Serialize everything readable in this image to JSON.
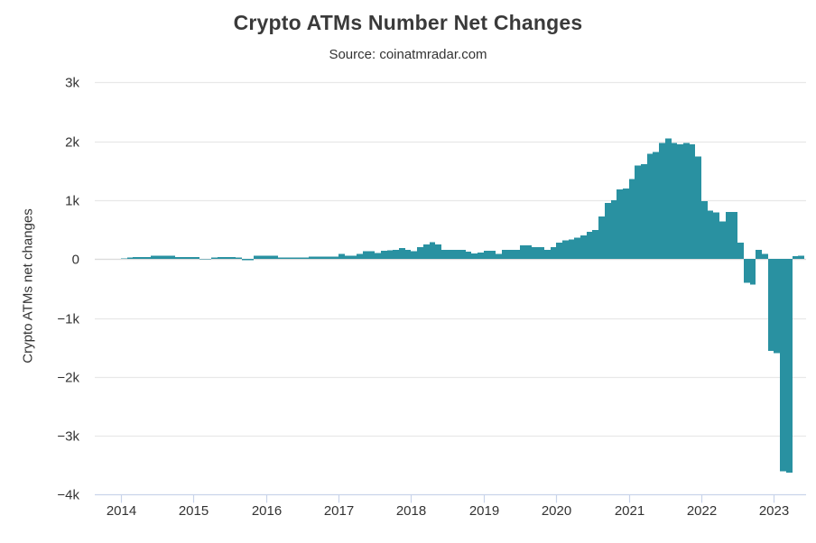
{
  "page": {
    "title": "Crypto ATMs Number Net Changes",
    "subtitle": "Source: coinatmradar.com"
  },
  "chart_data": {
    "type": "bar",
    "title": "Crypto ATMs Number Net Changes",
    "subtitle": "Source: coinatmradar.com",
    "xlabel": "",
    "ylabel": "Crypto ATMs net changes",
    "ylim": [
      -4000,
      3000
    ],
    "grid": true,
    "legend": "none",
    "bar_color": "#2991a1",
    "grid_color": "#e8e8e8",
    "axis_color": "#c9d4ea",
    "zero_line_color": "#dcdcdc",
    "text_color": "#333333",
    "ytick_values": [
      3000,
      2000,
      1000,
      0,
      -1000,
      -2000,
      -3000,
      -4000
    ],
    "ytick_labels": [
      "3k",
      "2k",
      "1k",
      "0",
      "−1k",
      "−2k",
      "−3k",
      "−4k"
    ],
    "xtick_labels": [
      "2014",
      "2015",
      "2016",
      "2017",
      "2018",
      "2019",
      "2020",
      "2021",
      "2022",
      "2023"
    ],
    "months": [
      "2014-01",
      "2014-02",
      "2014-03",
      "2014-04",
      "2014-05",
      "2014-06",
      "2014-07",
      "2014-08",
      "2014-09",
      "2014-10",
      "2014-11",
      "2014-12",
      "2015-01",
      "2015-02",
      "2015-03",
      "2015-04",
      "2015-05",
      "2015-06",
      "2015-07",
      "2015-08",
      "2015-09",
      "2015-10",
      "2015-11",
      "2015-12",
      "2016-01",
      "2016-02",
      "2016-03",
      "2016-04",
      "2016-05",
      "2016-06",
      "2016-07",
      "2016-08",
      "2016-09",
      "2016-10",
      "2016-11",
      "2016-12",
      "2017-01",
      "2017-02",
      "2017-03",
      "2017-04",
      "2017-05",
      "2017-06",
      "2017-07",
      "2017-08",
      "2017-09",
      "2017-10",
      "2017-11",
      "2017-12",
      "2018-01",
      "2018-02",
      "2018-03",
      "2018-04",
      "2018-05",
      "2018-06",
      "2018-07",
      "2018-08",
      "2018-09",
      "2018-10",
      "2018-11",
      "2018-12",
      "2019-01",
      "2019-02",
      "2019-03",
      "2019-04",
      "2019-05",
      "2019-06",
      "2019-07",
      "2019-08",
      "2019-09",
      "2019-10",
      "2019-11",
      "2019-12",
      "2020-01",
      "2020-02",
      "2020-03",
      "2020-04",
      "2020-05",
      "2020-06",
      "2020-07",
      "2020-08",
      "2020-09",
      "2020-10",
      "2020-11",
      "2020-12",
      "2021-01",
      "2021-02",
      "2021-03",
      "2021-04",
      "2021-05",
      "2021-06",
      "2021-07",
      "2021-08",
      "2021-09",
      "2021-10",
      "2021-11",
      "2021-12",
      "2022-01",
      "2022-02",
      "2022-03",
      "2022-04",
      "2022-05",
      "2022-06",
      "2022-07",
      "2022-08",
      "2022-09",
      "2022-10",
      "2022-11",
      "2022-12",
      "2023-01",
      "2023-02",
      "2023-03",
      "2023-04",
      "2023-05"
    ],
    "values": [
      10,
      25,
      30,
      30,
      30,
      55,
      60,
      55,
      55,
      30,
      30,
      30,
      30,
      5,
      5,
      25,
      30,
      30,
      30,
      25,
      -20,
      -20,
      55,
      60,
      60,
      55,
      25,
      25,
      25,
      25,
      25,
      45,
      45,
      45,
      45,
      45,
      90,
      60,
      60,
      90,
      130,
      130,
      100,
      140,
      150,
      160,
      190,
      160,
      130,
      200,
      250,
      290,
      250,
      160,
      160,
      160,
      160,
      125,
      95,
      110,
      140,
      140,
      85,
      160,
      160,
      160,
      235,
      235,
      200,
      200,
      160,
      200,
      280,
      315,
      330,
      365,
      400,
      465,
      490,
      720,
      950,
      1000,
      1180,
      1200,
      1360,
      1590,
      1610,
      1790,
      1820,
      1970,
      2050,
      1970,
      1950,
      1970,
      1950,
      1740,
      980,
      820,
      790,
      640,
      800,
      800,
      280,
      -400,
      -430,
      160,
      90,
      -1560,
      -1600,
      -3600,
      -3627,
      50,
      60
    ]
  }
}
